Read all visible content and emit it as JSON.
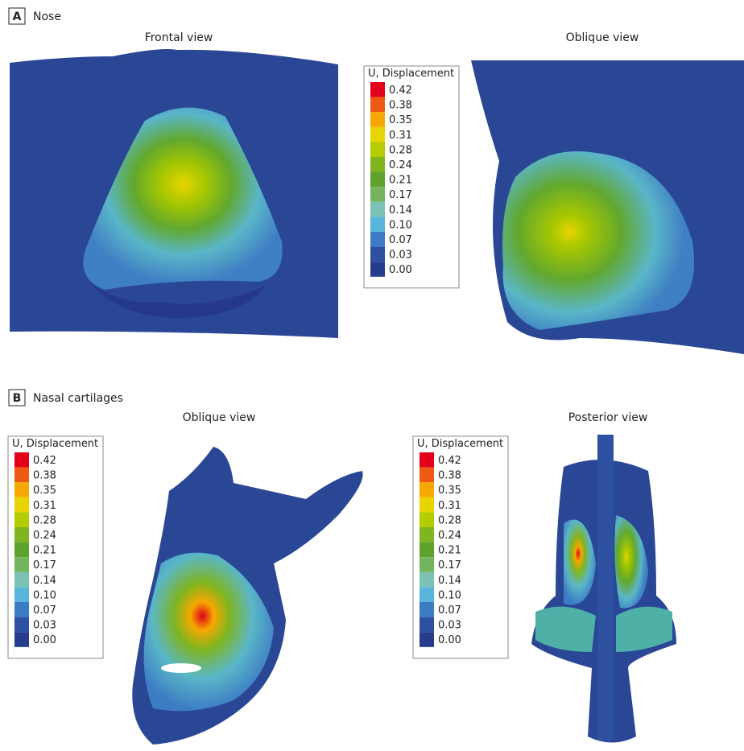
{
  "panel_a": {
    "letter": "A",
    "title": "Nose",
    "views": [
      "Frontal view",
      "Oblique view"
    ]
  },
  "panel_b": {
    "letter": "B",
    "title": "Nasal cartilages",
    "views": [
      "Oblique view",
      "Posterior view"
    ]
  },
  "legend": {
    "title": "U, Displacement",
    "labels": [
      "0.42",
      "0.38",
      "0.35",
      "0.31",
      "0.28",
      "0.24",
      "0.21",
      "0.17",
      "0.14",
      "0.10",
      "0.07",
      "0.03",
      "0.00"
    ],
    "colors": [
      "#e2001a",
      "#ee5a12",
      "#f6a800",
      "#e8d400",
      "#b6cb00",
      "#80b520",
      "#5fa22b",
      "#74b45e",
      "#7cc2b4",
      "#58b6dc",
      "#3c7cc4",
      "#2e50a0",
      "#263c8c"
    ]
  }
}
